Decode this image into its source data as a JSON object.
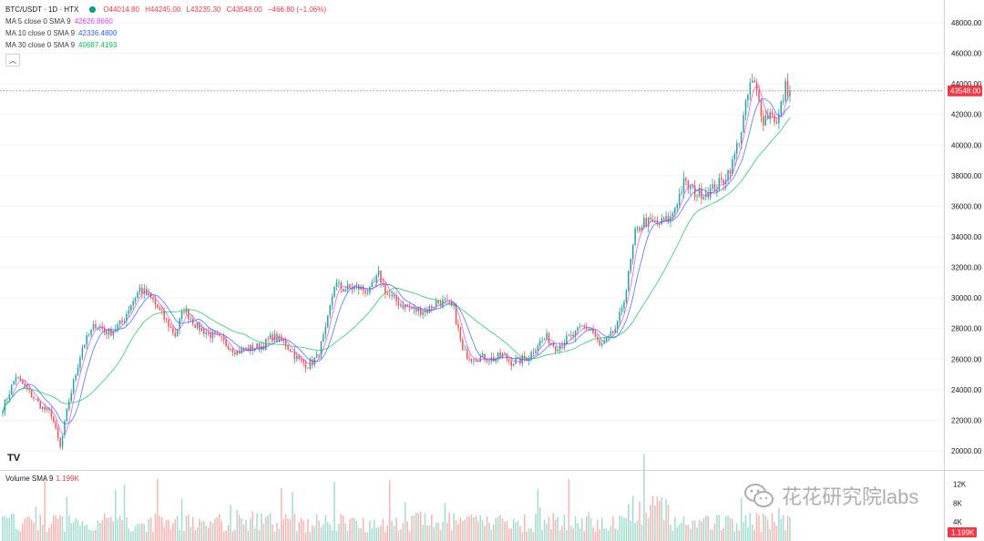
{
  "header": {
    "symbol": "BTC/USDT · 1D · HTX",
    "open": "O44014.80",
    "high": "H44245.00",
    "low": "L43235.30",
    "close": "C43548.00",
    "change": "−466.80 (−1.06%)"
  },
  "indicators": [
    {
      "label": "MA 5 close 0 SMA 9",
      "value": "42626.8660",
      "color": "#e040fb"
    },
    {
      "label": "MA 10 close 0 SMA 9",
      "value": "42336.4800",
      "color": "#2962ff"
    },
    {
      "label": "MA 30 close 0 SMA 9",
      "value": "40687.4193",
      "color": "#00c853"
    }
  ],
  "volume_legend": {
    "label": "Volume SMA 9",
    "value": "1.199K"
  },
  "price_axis": {
    "ticks": [
      "48000.00",
      "46000.00",
      "44000.00",
      "42000.00",
      "40000.00",
      "38000.00",
      "36000.00",
      "34000.00",
      "32000.00",
      "30000.00",
      "28000.00",
      "26000.00",
      "24000.00",
      "22000.00",
      "20000.00"
    ],
    "current_label": "43548.00"
  },
  "volume_axis": {
    "ticks": [
      "12K",
      "8K",
      "4K"
    ],
    "current_label": "1.199K"
  },
  "watermark": {
    "text": "花花研究院labs",
    "icon": "wechat-icon"
  },
  "logo": {
    "text": "TV"
  },
  "colors": {
    "up": "#26a69a",
    "down": "#ef5350",
    "ma5": "#e040fb",
    "ma10": "#2962ff",
    "ma30": "#00c853",
    "current_price": "#f23645"
  },
  "chart_data": {
    "type": "candlestick",
    "title": "BTC/USDT · 1D · HTX",
    "ylim": [
      18500,
      49000
    ],
    "current_price": 43548.0,
    "waypoints": [
      [
        0,
        22800
      ],
      [
        6,
        24900
      ],
      [
        12,
        23800
      ],
      [
        18,
        22800
      ],
      [
        22,
        22400
      ],
      [
        26,
        20200
      ],
      [
        30,
        23300
      ],
      [
        36,
        26800
      ],
      [
        42,
        28300
      ],
      [
        48,
        27700
      ],
      [
        54,
        28400
      ],
      [
        58,
        29600
      ],
      [
        62,
        30600
      ],
      [
        68,
        29800
      ],
      [
        72,
        28900
      ],
      [
        78,
        27600
      ],
      [
        82,
        29300
      ],
      [
        88,
        28100
      ],
      [
        94,
        27600
      ],
      [
        100,
        27100
      ],
      [
        106,
        26500
      ],
      [
        112,
        26700
      ],
      [
        118,
        26900
      ],
      [
        122,
        27500
      ],
      [
        128,
        27000
      ],
      [
        134,
        25900
      ],
      [
        138,
        25600
      ],
      [
        142,
        26100
      ],
      [
        146,
        27800
      ],
      [
        150,
        30900
      ],
      [
        154,
        30600
      ],
      [
        160,
        30700
      ],
      [
        166,
        30400
      ],
      [
        170,
        31500
      ],
      [
        174,
        30200
      ],
      [
        180,
        29600
      ],
      [
        186,
        29200
      ],
      [
        192,
        29200
      ],
      [
        196,
        29700
      ],
      [
        200,
        29700
      ],
      [
        204,
        29300
      ],
      [
        208,
        26500
      ],
      [
        212,
        26100
      ],
      [
        218,
        26100
      ],
      [
        222,
        26000
      ],
      [
        226,
        26300
      ],
      [
        230,
        25800
      ],
      [
        234,
        25900
      ],
      [
        238,
        26200
      ],
      [
        242,
        27000
      ],
      [
        246,
        27400
      ],
      [
        250,
        26800
      ],
      [
        254,
        27200
      ],
      [
        258,
        27500
      ],
      [
        262,
        28100
      ],
      [
        266,
        28000
      ],
      [
        270,
        26800
      ],
      [
        274,
        27300
      ],
      [
        278,
        28200
      ],
      [
        282,
        30600
      ],
      [
        286,
        34200
      ],
      [
        290,
        35000
      ],
      [
        296,
        34800
      ],
      [
        302,
        35200
      ],
      [
        308,
        37500
      ],
      [
        314,
        36800
      ],
      [
        320,
        37000
      ],
      [
        326,
        37700
      ],
      [
        330,
        38800
      ],
      [
        334,
        41000
      ],
      [
        338,
        44000
      ],
      [
        340,
        43900
      ],
      [
        344,
        41700
      ],
      [
        348,
        42200
      ],
      [
        350,
        41300
      ],
      [
        354,
        43800
      ],
      [
        356,
        43548
      ]
    ],
    "note_volume_axis": [
      0,
      14000
    ]
  }
}
